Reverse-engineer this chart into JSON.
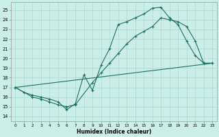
{
  "xlabel": "Humidex (Indice chaleur)",
  "xlim": [
    -0.5,
    23.5
  ],
  "ylim": [
    13.5,
    25.8
  ],
  "yticks": [
    14,
    15,
    16,
    17,
    18,
    19,
    20,
    21,
    22,
    23,
    24,
    25
  ],
  "xticks": [
    0,
    1,
    2,
    3,
    4,
    5,
    6,
    7,
    8,
    9,
    10,
    11,
    12,
    13,
    14,
    15,
    16,
    17,
    18,
    19,
    20,
    21,
    22,
    23
  ],
  "bg_color": "#cceee8",
  "grid_color": "#aad8d0",
  "line_color": "#1a7060",
  "curve1_x": [
    0,
    1,
    2,
    3,
    4,
    5,
    6,
    7,
    8,
    9,
    10,
    11,
    12,
    13,
    14,
    15,
    16,
    17,
    18,
    19,
    20,
    21,
    22,
    23
  ],
  "curve1_y": [
    17.0,
    16.5,
    16.2,
    16.0,
    15.8,
    15.5,
    14.7,
    15.3,
    18.3,
    16.7,
    19.3,
    21.0,
    23.5,
    23.8,
    24.2,
    24.6,
    25.2,
    25.3,
    24.2,
    23.5,
    21.8,
    20.3,
    19.5,
    19.5
  ],
  "curve2_x": [
    0,
    2,
    3,
    4,
    5,
    6,
    7,
    9,
    10,
    11,
    12,
    13,
    14,
    15,
    16,
    17,
    18,
    19,
    20,
    21,
    22,
    23
  ],
  "curve2_y": [
    17.0,
    16.0,
    15.8,
    15.5,
    15.2,
    15.0,
    15.2,
    17.5,
    18.5,
    19.5,
    20.5,
    21.5,
    22.3,
    22.8,
    23.3,
    24.2,
    24.0,
    23.8,
    23.3,
    21.8,
    19.5,
    19.5
  ],
  "curve3_x": [
    0,
    23
  ],
  "curve3_y": [
    17.0,
    19.5
  ]
}
